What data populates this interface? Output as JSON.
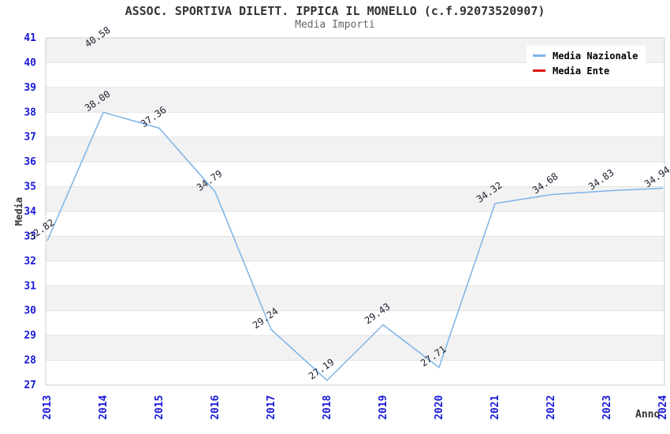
{
  "header": {
    "title": "ASSOC. SPORTIVA DILETT. IPPICA IL MONELLO (c.f.92073520907)",
    "subtitle": "Media Importi"
  },
  "legend": {
    "position": "top-right",
    "items": [
      {
        "label": "Media Nazionale",
        "color": "#7cb3e8"
      },
      {
        "label": "Media Ente",
        "color": "#dd1111"
      }
    ]
  },
  "chart_data": {
    "type": "line",
    "title": "ASSOC. SPORTIVA DILETT. IPPICA IL MONELLO (c.f.92073520907)",
    "subtitle": "Media Importi",
    "xlabel": "Anno",
    "ylabel": "Media",
    "x": [
      2013,
      2014,
      2015,
      2016,
      2017,
      2018,
      2019,
      2020,
      2021,
      2022,
      2023,
      2024
    ],
    "ylim": [
      27,
      41
    ],
    "ytick_step": 1,
    "grid": true,
    "alternating_bands": true,
    "value_labels": true,
    "series": [
      {
        "name": "Media Nazionale",
        "color": "#7cb3e8",
        "values": [
          32.82,
          38.0,
          37.36,
          34.79,
          29.24,
          27.19,
          29.43,
          27.71,
          34.32,
          34.68,
          34.83,
          34.94
        ]
      },
      {
        "name": "Media Ente",
        "color": "#dd1111",
        "values": [
          null,
          40.58,
          null,
          null,
          null,
          null,
          null,
          null,
          null,
          null,
          null,
          null
        ]
      }
    ],
    "colors": {
      "axis_tick_label": "#1818d8",
      "value_label": "#222233",
      "band_fill": "#f2f2f2",
      "grid_line": "#e2e2e2",
      "plot_border": "#cccccc"
    }
  }
}
